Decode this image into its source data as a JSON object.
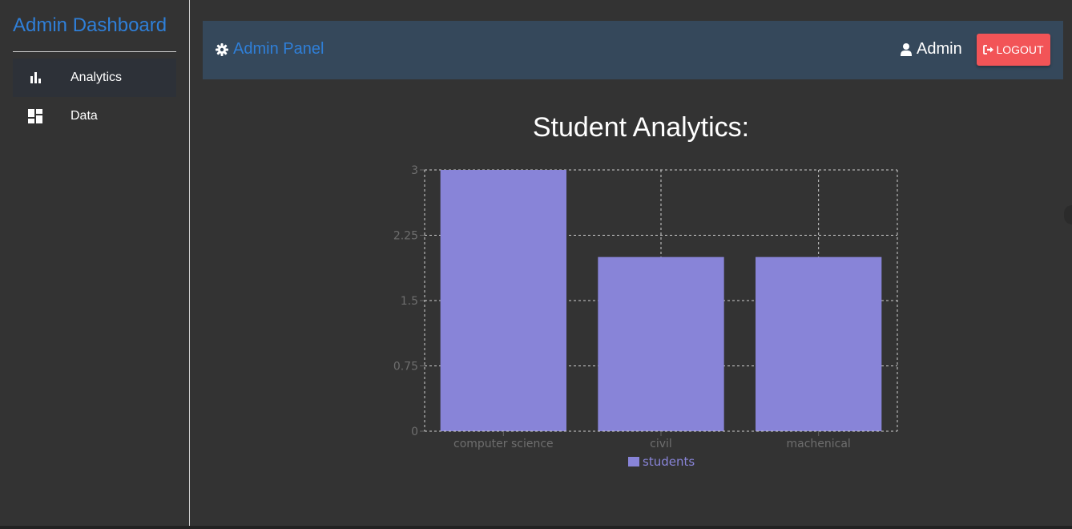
{
  "sidebar": {
    "title": "Admin Dashboard",
    "items": [
      {
        "label": "Analytics",
        "icon": "bar-chart-icon",
        "active": true
      },
      {
        "label": "Data",
        "icon": "dashboard-icon",
        "active": false
      }
    ]
  },
  "topbar": {
    "panel_label": "Admin Panel",
    "panel_icon": "gear-icon",
    "user_label": "Admin",
    "user_icon": "user-icon",
    "logout_label": "LOGOUT",
    "logout_icon": "sign-out-icon"
  },
  "colors": {
    "accent": "#2f7fd8",
    "topbar_bg": "#35485b",
    "logout_bg": "#f25457",
    "bar": "#8884d8",
    "page_bg": "#333333"
  },
  "chart_data": {
    "type": "bar",
    "title": "Student Analytics:",
    "categories": [
      "computer science",
      "civil",
      "machenical"
    ],
    "series": [
      {
        "name": "students",
        "values": [
          3,
          2,
          2
        ],
        "color": "#8884d8"
      }
    ],
    "ylim": [
      0,
      3
    ],
    "yticks": [
      "0",
      "0.75",
      "1.5",
      "2.25",
      "3"
    ],
    "grid": true,
    "legend": "bottom"
  }
}
